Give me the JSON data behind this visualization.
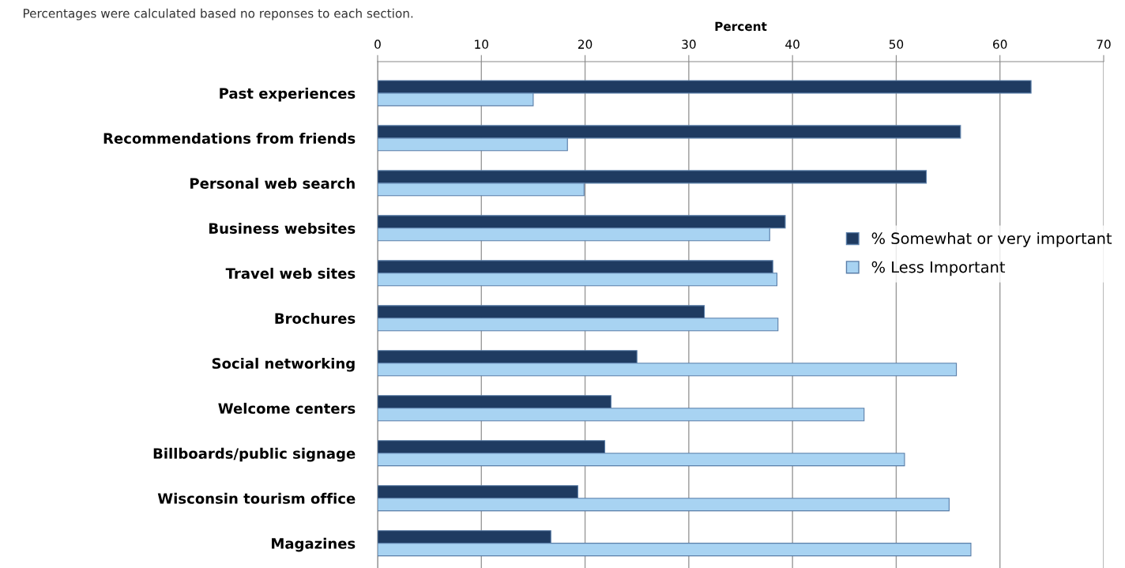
{
  "chart_data": {
    "type": "bar",
    "orientation": "horizontal",
    "xlabel": "Percent",
    "annotations": [
      "Percentages were calculated based no reponses to each section."
    ],
    "categories": [
      "Past experiences",
      "Recommendations from friends",
      "Personal web search",
      "Business websites",
      "Travel web sites",
      "Brochures",
      "Social networking",
      "Welcome centers",
      "Billboards/public signage",
      "Wisconsin tourism office",
      "Magazines"
    ],
    "series": [
      {
        "name": "% Somewhat or very important",
        "color": "#1f3b61",
        "values": [
          63.0,
          56.2,
          52.9,
          39.3,
          38.1,
          31.5,
          25.0,
          22.5,
          21.9,
          19.3,
          16.7
        ]
      },
      {
        "name": "% Less Important",
        "color": "#a8d3f2",
        "values": [
          15.0,
          18.3,
          19.9,
          37.8,
          38.5,
          38.6,
          55.8,
          46.9,
          50.8,
          55.1,
          57.2
        ]
      }
    ],
    "xlim": [
      0,
      70
    ],
    "xticks": [
      0,
      10,
      20,
      30,
      40,
      50,
      60,
      70
    ],
    "grid": "x",
    "legend": "right"
  }
}
